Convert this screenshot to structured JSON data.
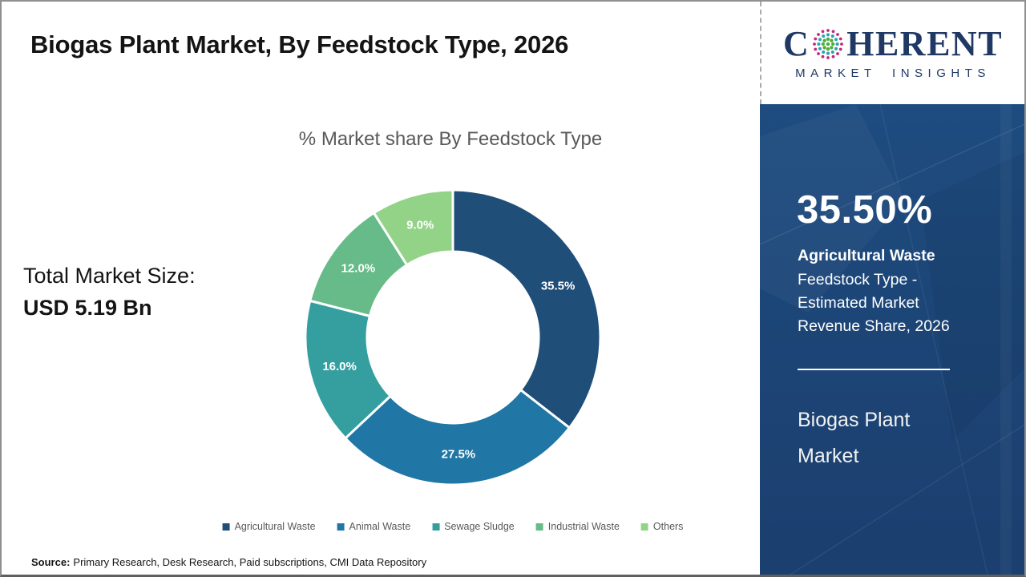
{
  "title": "Biogas Plant Market, By Feedstock Type, 2026",
  "logo": {
    "word_start": "C",
    "word_end": "HERENT",
    "tagline": "MARKET INSIGHTS",
    "navy": "#1f3864",
    "globe_colors": {
      "green": "#4faf3c",
      "teal": "#2e9fb5",
      "magenta": "#c02a7c"
    }
  },
  "total_market": {
    "label": "Total Market Size:",
    "value": "USD 5.19 Bn"
  },
  "chart_data": {
    "type": "pie",
    "donut": true,
    "inner_radius_ratio": 0.58,
    "start_angle_deg": 0,
    "direction": "clockwise",
    "title": "% Market share By Feedstock Type",
    "categories": [
      "Agricultural Waste",
      "Animal Waste",
      "Sewage Sludge",
      "Industrial Waste",
      "Others"
    ],
    "values": [
      35.5,
      27.5,
      16.0,
      12.0,
      9.0
    ],
    "labels": [
      "35.5%",
      "27.5%",
      "16.0%",
      "12.0%",
      "9.0%"
    ],
    "colors": [
      "#1f4e79",
      "#2076a5",
      "#359fa0",
      "#66bb88",
      "#93d387"
    ],
    "legend_position": "bottom"
  },
  "sidebar": {
    "highlight_value": "35.50%",
    "highlight_bold": "Agricultural Waste",
    "highlight_text": "Feedstock Type - Estimated Market Revenue Share, 2026",
    "footer_title": "Biogas Plant Market",
    "background": "#1c4475"
  },
  "source": {
    "label": "Source:",
    "text": "Primary Research, Desk Research, Paid subscriptions, CMI Data Repository"
  }
}
